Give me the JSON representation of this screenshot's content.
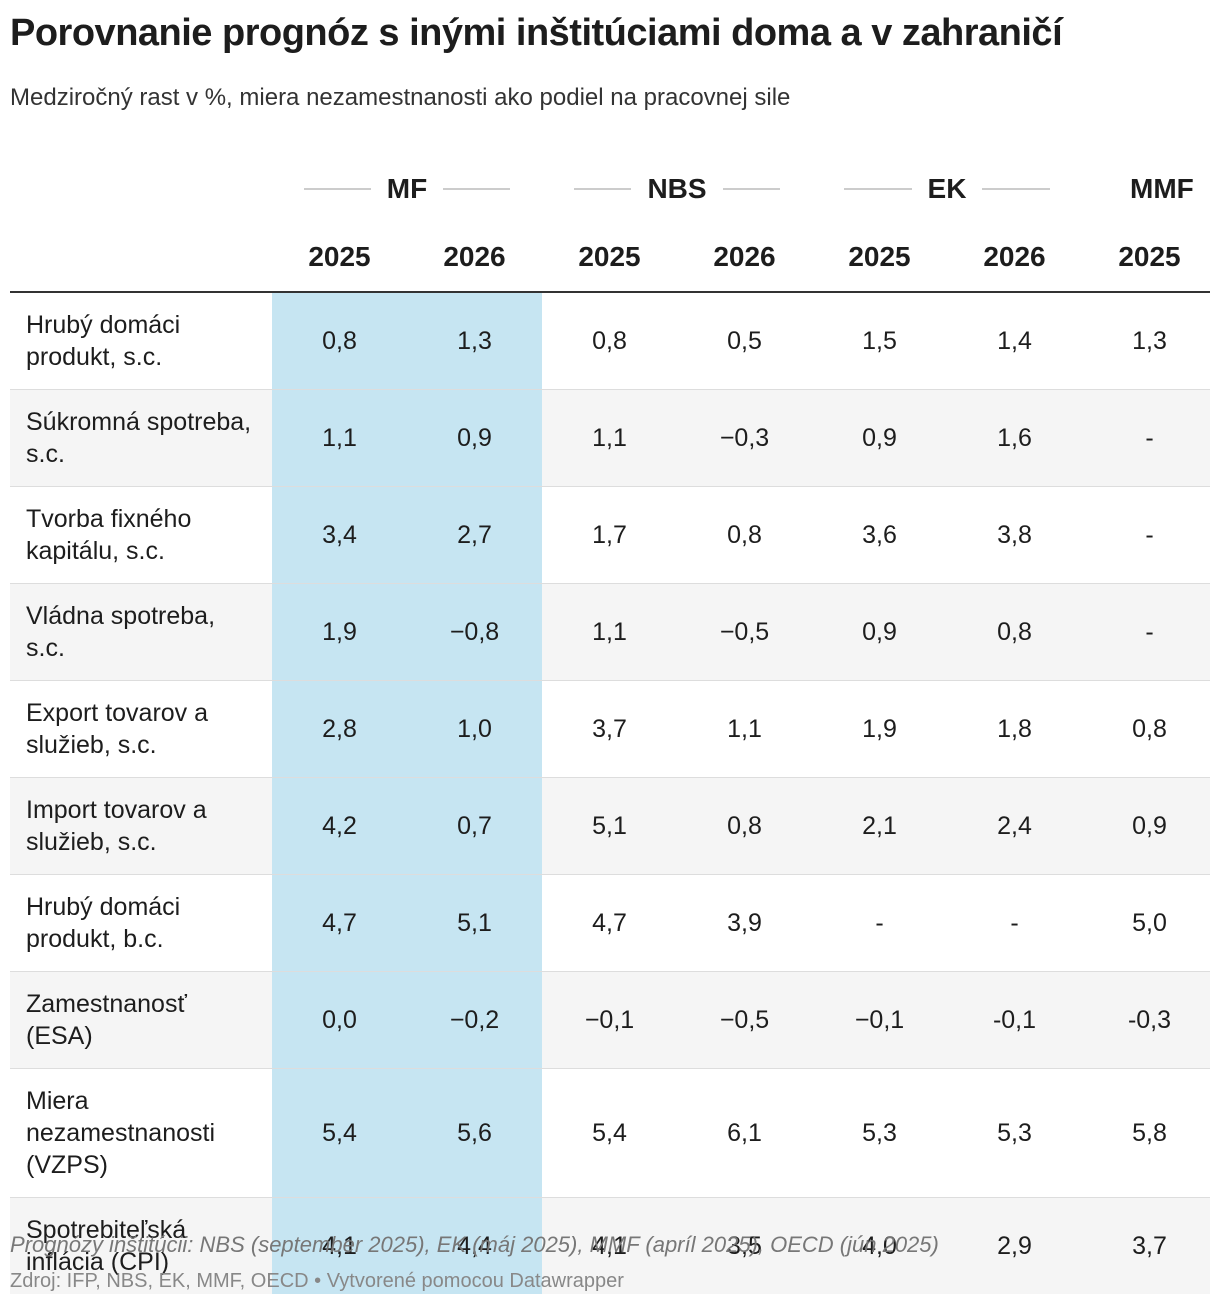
{
  "header": {
    "title": "Porovnanie prognóz s inými inštitúciami doma a v zahraničí",
    "subtitle": "Medziročný rast v %, miera nezamestnanosti ako podiel na pracovnej sile"
  },
  "table": {
    "groups": [
      "MF",
      "NBS",
      "EK",
      "MMF"
    ],
    "years": [
      "2025",
      "2026",
      "2025",
      "2026",
      "2025",
      "2026",
      "2025"
    ],
    "rows": [
      {
        "label": "Hrubý domáci produkt, s.c.",
        "values": [
          "0,8",
          "1,3",
          "0,8",
          "0,5",
          "1,5",
          "1,4",
          "1,3"
        ]
      },
      {
        "label": "Súkromná spotreba, s.c.",
        "values": [
          "1,1",
          "0,9",
          "1,1",
          "−0,3",
          "0,9",
          "1,6",
          "-"
        ]
      },
      {
        "label": "Tvorba fixného kapitálu, s.c.",
        "values": [
          "3,4",
          "2,7",
          "1,7",
          "0,8",
          "3,6",
          "3,8",
          "-"
        ]
      },
      {
        "label": "Vládna spotreba, s.c.",
        "values": [
          "1,9",
          "−0,8",
          "1,1",
          "−0,5",
          "0,9",
          "0,8",
          "-"
        ]
      },
      {
        "label": "Export tovarov a služieb, s.c.",
        "values": [
          "2,8",
          "1,0",
          "3,7",
          "1,1",
          "1,9",
          "1,8",
          "0,8"
        ]
      },
      {
        "label": "Import tovarov a služieb, s.c.",
        "values": [
          "4,2",
          "0,7",
          "5,1",
          "0,8",
          "2,1",
          "2,4",
          "0,9"
        ]
      },
      {
        "label": "Hrubý domáci produkt, b.c.",
        "values": [
          "4,7",
          "5,1",
          "4,7",
          "3,9",
          "-",
          "-",
          "5,0"
        ]
      },
      {
        "label": "Zamestnanosť (ESA)",
        "values": [
          "0,0",
          "−0,2",
          "−0,1",
          "−0,5",
          "−0,1",
          "-0,1",
          "-0,3"
        ]
      },
      {
        "label": "Miera nezamestnanosti (VZPS)",
        "values": [
          "5,4",
          "5,6",
          "5,4",
          "6,1",
          "5,3",
          "5,3",
          "5,8"
        ]
      },
      {
        "label": "Spotrebiteľská inflácia (CPI)",
        "values": [
          "4,1",
          "4,4",
          "4,1",
          "3,5",
          "4,0",
          "2,9",
          "3,7"
        ]
      }
    ]
  },
  "footer": {
    "note": "Prognózy inštitúcii: NBS (september 2025), EK (máj 2025), MMF (apríl 2025), OECD (jún 2025)",
    "source": "Zdroj: IFP, NBS, EK, MMF, OECD • Vytvorené pomocou Datawrapper"
  }
}
